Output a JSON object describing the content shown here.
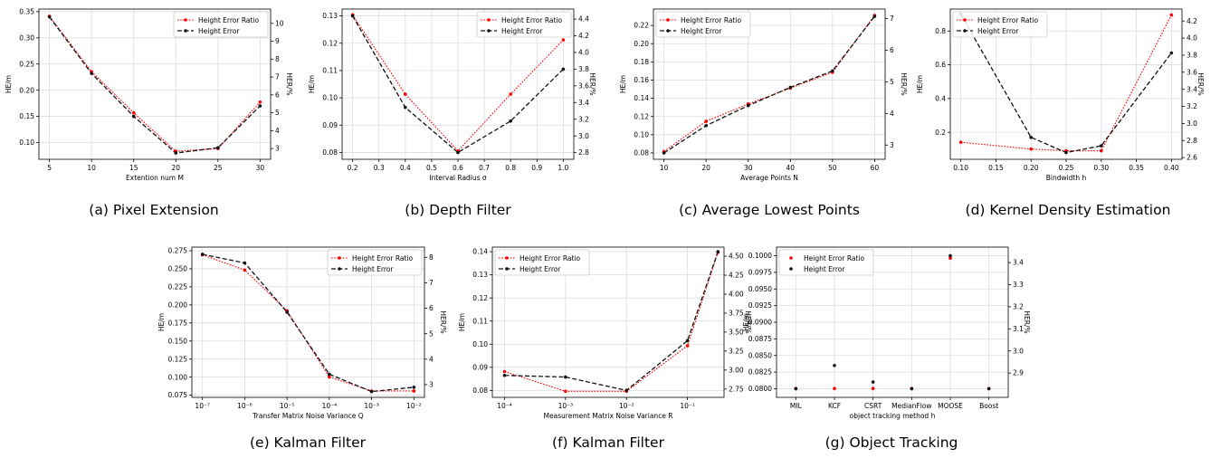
{
  "legend": {
    "ratio": "Height Error Ratio",
    "error": "Height Error"
  },
  "colors": {
    "ratio": "#ff0000",
    "error": "#111111",
    "grid": "#dddddd",
    "axis": "#000000"
  },
  "chart_data": [
    {
      "type": "line",
      "caption": "(a) Pixel Extension",
      "xlabel": "Extention num M",
      "ylabel": "HE/m",
      "y2label": "HER/%",
      "x_scale": "linear",
      "x": [
        5,
        10,
        15,
        20,
        25,
        30
      ],
      "xticks": [
        5,
        10,
        15,
        20,
        25,
        30
      ],
      "xticklabels": [
        "5",
        "10",
        "15",
        "20",
        "25",
        "30"
      ],
      "xlim": [
        3.75,
        31.25
      ],
      "ylim": [
        0.068,
        0.355
      ],
      "yticks": [
        0.1,
        0.15,
        0.2,
        0.25,
        0.3,
        0.35
      ],
      "yticklabels": [
        "0.10",
        "0.15",
        "0.20",
        "0.25",
        "0.30",
        "0.35"
      ],
      "y2lim": [
        2.4,
        10.8
      ],
      "y2ticks": [
        3,
        4,
        5,
        6,
        7,
        8,
        9,
        10
      ],
      "y2ticklabels": [
        "3",
        "4",
        "5",
        "6",
        "7",
        "8",
        "9",
        "10"
      ],
      "series": [
        {
          "name": "Height Error Ratio",
          "axis": "right",
          "values": [
            10.4,
            7.3,
            5.0,
            2.85,
            3.0,
            5.6
          ]
        },
        {
          "name": "Height Error",
          "axis": "left",
          "values": [
            0.34,
            0.232,
            0.15,
            0.08,
            0.09,
            0.17
          ]
        }
      ],
      "legend_position": "top-right",
      "grid": true
    },
    {
      "type": "line",
      "caption": "(b) Depth Filter",
      "xlabel": "Interval Radius σ",
      "ylabel": "HE/m",
      "y2label": "HER/%",
      "x_scale": "linear",
      "x": [
        0.2,
        0.4,
        0.6,
        0.8,
        1.0
      ],
      "xticks": [
        0.2,
        0.3,
        0.4,
        0.5,
        0.6,
        0.7,
        0.8,
        0.9,
        1.0
      ],
      "xticklabels": [
        "0.2",
        "0.3",
        "0.4",
        "0.5",
        "0.6",
        "0.7",
        "0.8",
        "0.9",
        "1.0"
      ],
      "xlim": [
        0.16,
        1.04
      ],
      "ylim": [
        0.0775,
        0.1325
      ],
      "yticks": [
        0.08,
        0.09,
        0.1,
        0.11,
        0.12,
        0.13
      ],
      "yticklabels": [
        "0.08",
        "0.09",
        "0.10",
        "0.11",
        "0.12",
        "0.13"
      ],
      "y2lim": [
        2.72,
        4.52
      ],
      "y2ticks": [
        2.8,
        3.0,
        3.2,
        3.4,
        3.6,
        3.8,
        4.0,
        4.2,
        4.4
      ],
      "y2ticklabels": [
        "2.8",
        "3.0",
        "3.2",
        "3.4",
        "3.6",
        "3.8",
        "4.0",
        "4.2",
        "4.4"
      ],
      "series": [
        {
          "name": "Height Error Ratio",
          "axis": "right",
          "values": [
            4.45,
            3.5,
            2.82,
            3.5,
            4.15
          ]
        },
        {
          "name": "Height Error",
          "axis": "left",
          "values": [
            0.13,
            0.0965,
            0.08,
            0.0915,
            0.1105
          ]
        }
      ],
      "legend_position": "top-right",
      "grid": true
    },
    {
      "type": "line",
      "caption": "(c) Average Lowest Points",
      "xlabel": "Average Points N",
      "ylabel": "HE/m",
      "y2label": "HER/%",
      "x_scale": "linear",
      "x": [
        10,
        20,
        30,
        40,
        50,
        60
      ],
      "xticks": [
        10,
        20,
        30,
        40,
        50,
        60
      ],
      "xticklabels": [
        "10",
        "20",
        "30",
        "40",
        "50",
        "60"
      ],
      "xlim": [
        7.5,
        62.5
      ],
      "ylim": [
        0.073,
        0.238
      ],
      "yticks": [
        0.08,
        0.1,
        0.12,
        0.14,
        0.16,
        0.18,
        0.2,
        0.22
      ],
      "yticklabels": [
        "0.08",
        "0.10",
        "0.12",
        "0.14",
        "0.16",
        "0.18",
        "0.20",
        "0.22"
      ],
      "y2lim": [
        2.55,
        7.3
      ],
      "y2ticks": [
        3,
        4,
        5,
        6,
        7
      ],
      "y2ticklabels": [
        "3",
        "4",
        "5",
        "6",
        "7"
      ],
      "series": [
        {
          "name": "Height Error Ratio",
          "axis": "right",
          "values": [
            2.8,
            3.75,
            4.3,
            4.8,
            5.3,
            7.1
          ]
        },
        {
          "name": "Height Error",
          "axis": "left",
          "values": [
            0.08,
            0.11,
            0.132,
            0.152,
            0.17,
            0.23
          ]
        }
      ],
      "legend_position": "top-left",
      "grid": true
    },
    {
      "type": "line",
      "caption": "(d) Kernel Density Estimation",
      "xlabel": "Bindwidth h",
      "ylabel": "HE/m",
      "y2label": "HER/%",
      "x_scale": "linear",
      "x": [
        0.1,
        0.2,
        0.25,
        0.3,
        0.4
      ],
      "xticks": [
        0.1,
        0.15,
        0.2,
        0.25,
        0.3,
        0.35,
        0.4
      ],
      "xticklabels": [
        "0.10",
        "0.15",
        "0.20",
        "0.25",
        "0.30",
        "0.35",
        "0.40"
      ],
      "xlim": [
        0.085,
        0.415
      ],
      "ylim": [
        0.04,
        0.93
      ],
      "yticks": [
        0.2,
        0.4,
        0.6,
        0.8
      ],
      "yticklabels": [
        "0.2",
        "0.4",
        "0.6",
        "0.8"
      ],
      "y2lim": [
        2.58,
        4.34
      ],
      "y2ticks": [
        2.6,
        2.8,
        3.0,
        3.2,
        3.4,
        3.6,
        3.8,
        4.0,
        4.2
      ],
      "y2ticklabels": [
        "2.6",
        "2.8",
        "3.0",
        "3.2",
        "3.4",
        "3.6",
        "3.8",
        "4.0",
        "4.2"
      ],
      "series": [
        {
          "name": "Height Error Ratio",
          "axis": "right",
          "values": [
            2.78,
            2.7,
            2.68,
            2.68,
            4.27
          ]
        },
        {
          "name": "Height Error",
          "axis": "left",
          "values": [
            0.9,
            0.17,
            0.08,
            0.12,
            0.67
          ]
        }
      ],
      "legend_position": "top-left",
      "grid": true
    },
    {
      "type": "line",
      "caption": "(e) Kalman Filter",
      "xlabel": "Transfer Matrix Noise Variance Q",
      "ylabel": "HE/m",
      "y2label": "HER/%",
      "x_scale": "log",
      "x": [
        -7,
        -6,
        -5,
        -4,
        -3,
        -2
      ],
      "xticks": [
        -7,
        -6,
        -5,
        -4,
        -3,
        -2
      ],
      "xticklabels": [
        "10⁻⁷",
        "10⁻⁶",
        "10⁻⁵",
        "10⁻⁴",
        "10⁻³",
        "10⁻²"
      ],
      "xlim": [
        -7.25,
        -1.75
      ],
      "ylim": [
        0.072,
        0.28
      ],
      "yticks": [
        0.075,
        0.1,
        0.125,
        0.15,
        0.175,
        0.2,
        0.225,
        0.25,
        0.275
      ],
      "yticklabels": [
        "0.075",
        "0.100",
        "0.125",
        "0.150",
        "0.175",
        "0.200",
        "0.225",
        "0.250",
        "0.275"
      ],
      "y2lim": [
        2.5,
        8.4
      ],
      "y2ticks": [
        3,
        4,
        5,
        6,
        7,
        8
      ],
      "y2ticklabels": [
        "3",
        "4",
        "5",
        "6",
        "7",
        "8"
      ],
      "series": [
        {
          "name": "Height Error Ratio",
          "axis": "right",
          "values": [
            8.1,
            7.5,
            5.9,
            3.3,
            2.75,
            2.75
          ]
        },
        {
          "name": "Height Error",
          "axis": "left",
          "values": [
            0.27,
            0.258,
            0.19,
            0.104,
            0.08,
            0.086
          ]
        }
      ],
      "legend_position": "top-right",
      "grid": true
    },
    {
      "type": "line",
      "caption": "(f) Kalman Filter",
      "xlabel": "Measurement Matrix Noise Variance R",
      "ylabel": "HE/m",
      "y2label": "HER/%",
      "x_scale": "log",
      "x": [
        -4,
        -3,
        -2,
        -1,
        -0.5
      ],
      "xticks": [
        -4,
        -3,
        -2,
        -1
      ],
      "xticklabels": [
        "10⁻⁴",
        "10⁻³",
        "10⁻²",
        "10⁻¹"
      ],
      "xlim": [
        -4.2,
        -0.4
      ],
      "ylim": [
        0.077,
        0.142
      ],
      "yticks": [
        0.08,
        0.09,
        0.1,
        0.11,
        0.12,
        0.13,
        0.14
      ],
      "yticklabels": [
        "0.08",
        "0.09",
        "0.10",
        "0.11",
        "0.12",
        "0.13",
        "0.14"
      ],
      "y2lim": [
        2.64,
        4.62
      ],
      "y2ticks": [
        2.75,
        3.0,
        3.25,
        3.5,
        3.75,
        4.0,
        4.25,
        4.5
      ],
      "y2ticklabels": [
        "2.75",
        "3.00",
        "3.25",
        "3.50",
        "3.75",
        "4.00",
        "4.25",
        "4.50"
      ],
      "series": [
        {
          "name": "Height Error Ratio",
          "axis": "right",
          "values": [
            2.98,
            2.72,
            2.72,
            3.32,
            4.55
          ]
        },
        {
          "name": "Height Error",
          "axis": "left",
          "values": [
            0.0865,
            0.0858,
            0.08,
            0.1015,
            0.14
          ]
        }
      ],
      "legend_position": "top-left",
      "grid": true
    },
    {
      "type": "scatter",
      "caption": "(g) Object Tracking",
      "xlabel": "object tracking method h",
      "ylabel": "HE/m",
      "y2label": "HER/%",
      "x_scale": "category",
      "categories": [
        "MIL",
        "KCF",
        "CSRT",
        "MedianFlow",
        "MOOSE",
        "Boost"
      ],
      "xlim": [
        -0.5,
        5.5
      ],
      "ylim": [
        0.0787,
        0.1013
      ],
      "yticks": [
        0.08,
        0.0825,
        0.085,
        0.0875,
        0.09,
        0.0925,
        0.095,
        0.0975,
        0.1
      ],
      "yticklabels": [
        "0.0800",
        "0.0825",
        "0.0850",
        "0.0875",
        "0.0900",
        "0.0925",
        "0.0950",
        "0.0975",
        "0.1000"
      ],
      "y2lim": [
        2.79,
        3.47
      ],
      "y2ticks": [
        2.9,
        3.0,
        3.1,
        3.2,
        3.3,
        3.4
      ],
      "y2ticklabels": [
        "2.9",
        "3.0",
        "3.1",
        "3.2",
        "3.3",
        "3.4"
      ],
      "series": [
        {
          "name": "Height Error Ratio",
          "axis": "right",
          "values": [
            2.83,
            2.83,
            2.83,
            2.83,
            3.42,
            2.83
          ]
        },
        {
          "name": "Height Error",
          "axis": "left",
          "values": [
            0.08,
            0.0835,
            0.081,
            0.08,
            0.1,
            0.08
          ]
        }
      ],
      "legend_position": "top-left",
      "grid": true
    }
  ]
}
